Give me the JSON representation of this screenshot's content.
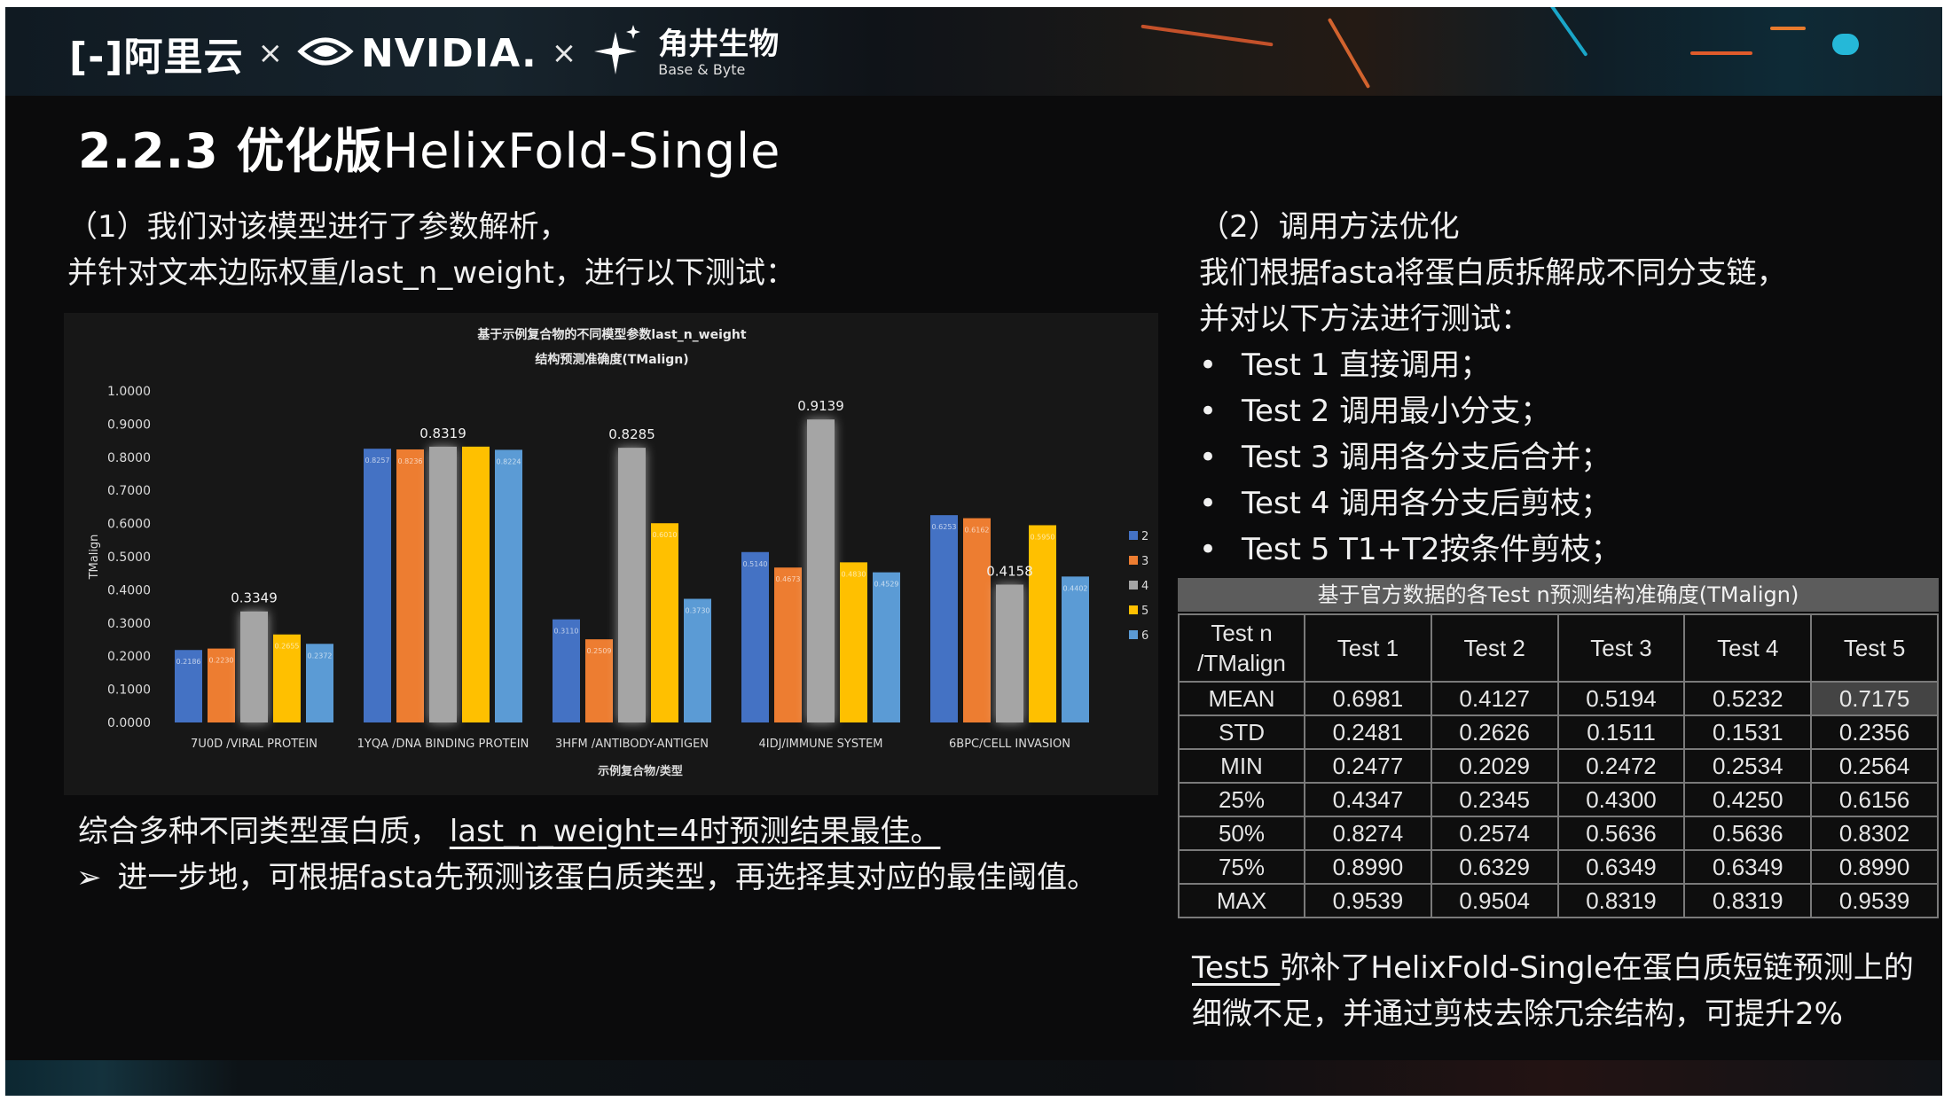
{
  "header": {
    "logo_aliyun": "[-]阿里云",
    "sep1": "×",
    "logo_nvidia": "NVIDIA.",
    "sep2": "×",
    "logo_bb_cn": "角井生物",
    "logo_bb_en": "Base & Byte"
  },
  "title": {
    "number": "2.2.3 优化版",
    "name": "HelixFold-Single"
  },
  "left": {
    "intro_line1": "（1）我们对该模型进行了参数解析，",
    "intro_line2": "并针对文本边际权重/last_n_weight，进行以下测试：",
    "conclusion_prefix": "综合多种不同类型蛋白质，",
    "conclusion_highlight": "last_n_weight=4时预测结果最佳。",
    "next_step_arrow": "➢",
    "next_step": "进一步地，可根据fasta先预测该蛋白质类型，再选择其对应的最佳阈值。"
  },
  "right": {
    "heading": "（2）调用方法优化",
    "line1": "我们根据fasta将蛋白质拆解成不同分支链，",
    "line2": "并对以下方法进行测试：",
    "tests": [
      "Test 1 直接调用；",
      "Test 2 调用最小分支；",
      "Test 3 调用各分支后合并；",
      "Test 4 调用各分支后剪枝；",
      "Test 5 T1+T2按条件剪枝；"
    ],
    "table_caption": "基于官方数据的各Test n预测结构准确度(TMalign)",
    "table_header": [
      "Test n\n/TMalign",
      "Test 1",
      "Test 2",
      "Test 3",
      "Test 4",
      "Test 5"
    ],
    "table_rows": [
      [
        "MEAN",
        "0.6981",
        "0.4127",
        "0.5194",
        "0.5232",
        "0.7175"
      ],
      [
        "STD",
        "0.2481",
        "0.2626",
        "0.1511",
        "0.1531",
        "0.2356"
      ],
      [
        "MIN",
        "0.2477",
        "0.2029",
        "0.2472",
        "0.2534",
        "0.2564"
      ],
      [
        "25%",
        "0.4347",
        "0.2345",
        "0.4300",
        "0.4250",
        "0.6156"
      ],
      [
        "50%",
        "0.8274",
        "0.2574",
        "0.5636",
        "0.5636",
        "0.8302"
      ],
      [
        "75%",
        "0.8990",
        "0.6329",
        "0.6349",
        "0.6349",
        "0.8990"
      ],
      [
        "MAX",
        "0.9539",
        "0.9504",
        "0.8319",
        "0.8319",
        "0.9539"
      ]
    ],
    "summary_underlined": "Test5 ",
    "summary_rest": "弥补了HelixFold-Single在蛋白质短链预测上的细微不足，并通过剪枝去除冗余结构，可提升2%"
  },
  "chart_data": {
    "type": "bar",
    "title_line1": "基于示例复合物的不同模型参数last_n_weight",
    "title_line2": "结构预测准确度(TMalign)",
    "xlabel": "示例复合物/类型",
    "ylabel": "TMalign",
    "ylim": [
      0,
      1
    ],
    "yticks": [
      "0.0000",
      "0.1000",
      "0.2000",
      "0.3000",
      "0.4000",
      "0.5000",
      "0.6000",
      "0.7000",
      "0.8000",
      "0.9000",
      "1.0000"
    ],
    "categories": [
      "7U0D /VIRAL PROTEIN",
      "1YQA /DNA BINDING PROTEIN",
      "3HFM /ANTIBODY-ANTIGEN",
      "4IDJ/IMMUNE SYSTEM",
      "6BPC/CELL INVASION"
    ],
    "series": [
      {
        "name": "2",
        "color": "#4472c4",
        "values": [
          0.2186,
          0.8257,
          0.311,
          0.514,
          0.6253
        ]
      },
      {
        "name": "3",
        "color": "#ed7d31",
        "values": [
          0.223,
          0.8236,
          0.2509,
          0.4673,
          0.6162
        ]
      },
      {
        "name": "4",
        "color": "#a5a5a5",
        "values": [
          0.3349,
          0.8319,
          0.8285,
          0.9139,
          0.4158
        ]
      },
      {
        "name": "5",
        "color": "#ffc000",
        "values": [
          0.2655,
          0.832,
          0.601,
          0.483,
          0.595
        ]
      },
      {
        "name": "6",
        "color": "#5b9bd5",
        "values": [
          0.2372,
          0.8224,
          0.373,
          0.4529,
          0.4402
        ]
      }
    ],
    "small_labels": [
      [
        "0.2186",
        "0.2230",
        "",
        "0.2655",
        "0.2372"
      ],
      [
        "0.8257",
        "0.8236",
        "",
        "",
        "0.8224"
      ],
      [
        "0.3110",
        "0.2509",
        "",
        "0.6010",
        "0.3730"
      ],
      [
        "0.5140",
        "0.4673",
        "",
        "0.4830",
        "0.4529"
      ],
      [
        "0.6253",
        "0.6162",
        "",
        "0.5950",
        "0.4402"
      ]
    ],
    "big_labels": [
      "0.3349",
      "0.8319",
      "0.8285",
      "0.9139",
      "0.4158"
    ],
    "legend": "right",
    "grid": false
  }
}
